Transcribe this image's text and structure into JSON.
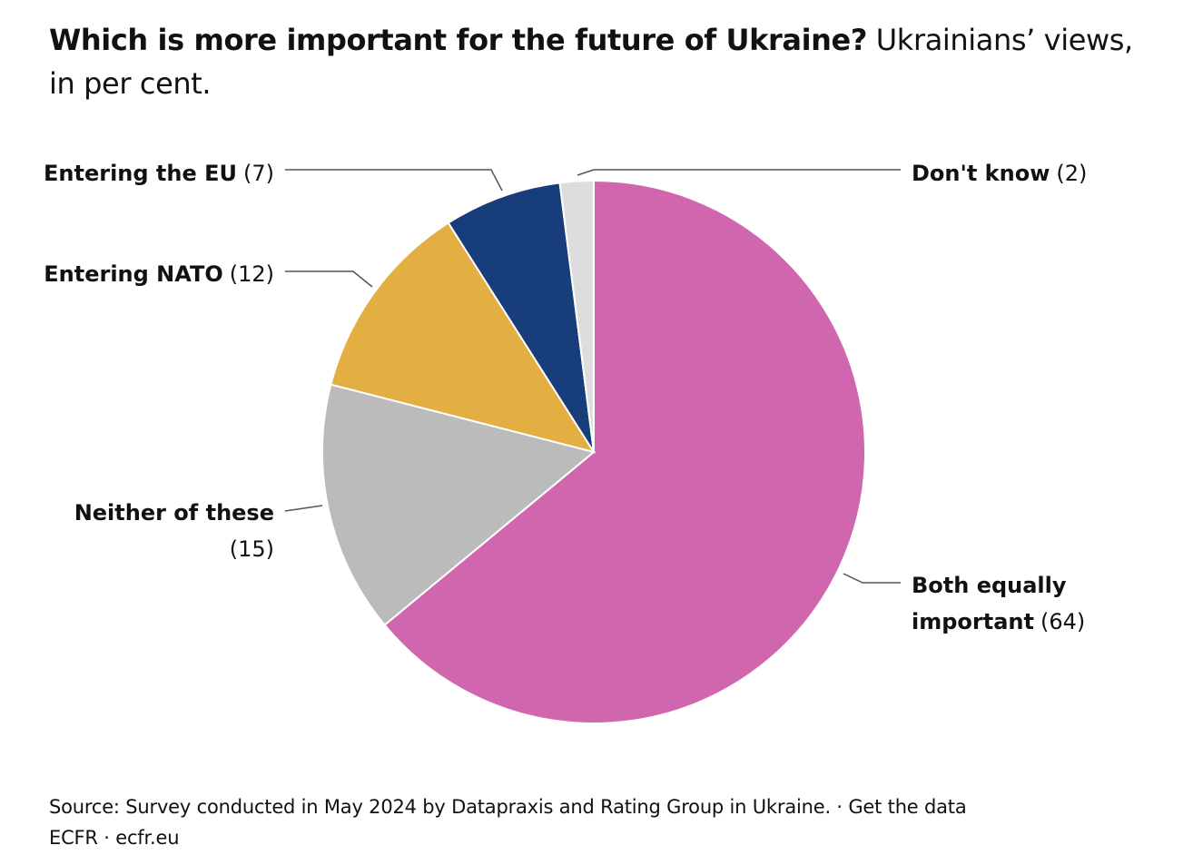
{
  "title": {
    "bold": "Which is more important for the future of Ukraine?",
    "rest": " Ukrainians’ views, in per cent."
  },
  "chart_data": {
    "type": "pie",
    "unit": "per cent",
    "start_angle_deg": 0,
    "direction": "clockwise",
    "slices": [
      {
        "name": "Both equally important",
        "value": 64,
        "color": "#d066ad"
      },
      {
        "name": "Neither of these",
        "value": 15,
        "color": "#bbbbbb"
      },
      {
        "name": "Entering NATO",
        "value": 12,
        "color": "#e3ae42"
      },
      {
        "name": "Entering the EU",
        "value": 7,
        "color": "#183d7b"
      },
      {
        "name": "Don't know",
        "value": 2,
        "color": "#dddddd"
      }
    ],
    "labels": {
      "both": {
        "line1": "Both equally",
        "line2_bold": "important",
        "value": "(64)"
      },
      "neither": {
        "line1": "Neither of these",
        "value": "(15)"
      },
      "nato": {
        "name": "Entering NATO",
        "value": "(12)"
      },
      "eu": {
        "name": "Entering the EU",
        "value": "(7)"
      },
      "dontknow": {
        "name": "Don't know",
        "value": "(2)"
      }
    }
  },
  "footer": {
    "source": "Source: Survey conducted in May 2024 by Datapraxis and Rating Group in Ukraine. · Get the data",
    "credit": "ECFR · ecfr.eu"
  }
}
